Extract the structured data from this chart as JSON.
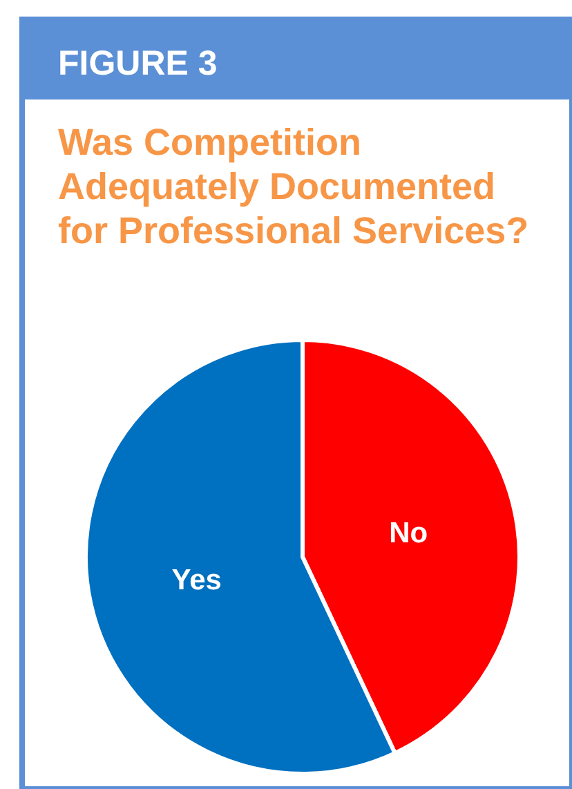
{
  "chart_data": {
    "type": "pie",
    "title": "FIGURE 3",
    "subtitle": "Was Competition Adequately Documented for Professional Services?",
    "categories": [
      "No",
      "Yes"
    ],
    "values": [
      43,
      57
    ],
    "colors": [
      "#ff0000",
      "#0070c0"
    ]
  }
}
